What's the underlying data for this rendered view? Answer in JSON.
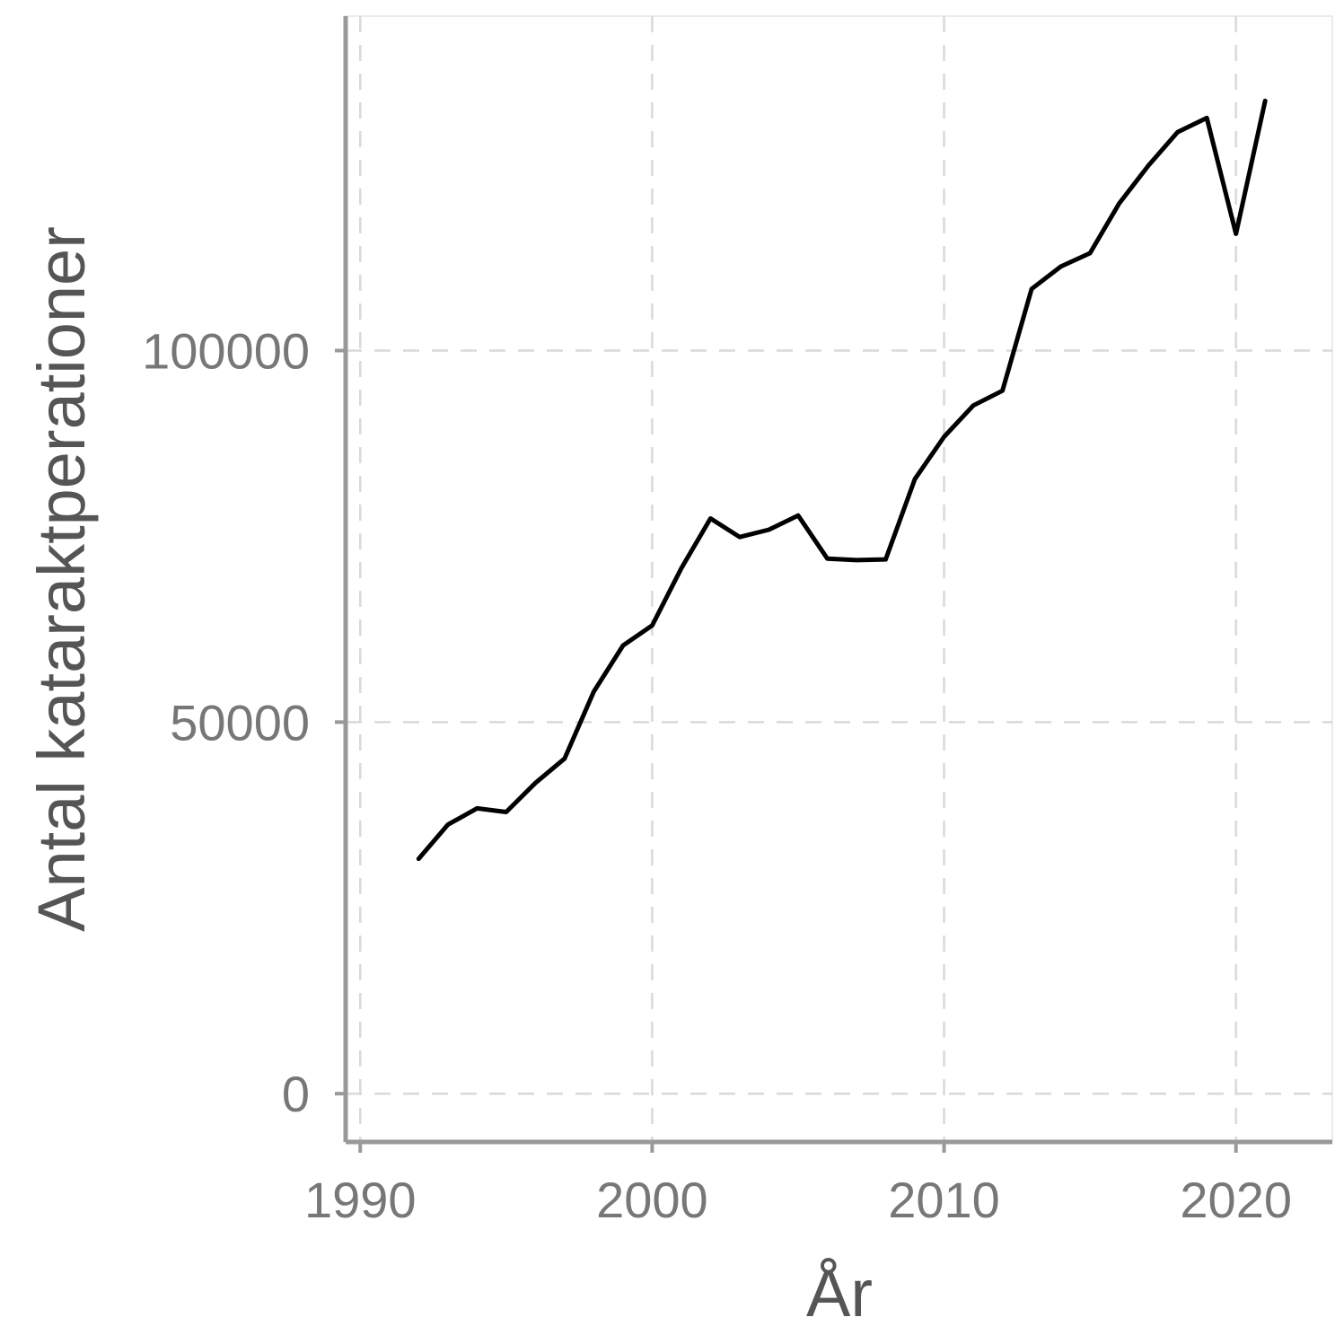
{
  "chart_data": {
    "type": "line",
    "title": "",
    "xlabel": "År",
    "ylabel": "Antal kataraktperationer",
    "xlim": [
      1989.5,
      2023.3
    ],
    "ylim": [
      -6500,
      145000
    ],
    "x_ticks": [
      1990,
      2000,
      2010,
      2020
    ],
    "y_ticks": [
      0,
      50000,
      100000
    ],
    "x_tick_labels": [
      "1990",
      "2000",
      "2010",
      "2020"
    ],
    "y_tick_labels": [
      "0",
      "50000",
      "100000"
    ],
    "grid": true,
    "legend": "none",
    "series": [
      {
        "color": "#000000",
        "x": [
          1992,
          1993,
          1994,
          1995,
          1996,
          1997,
          1998,
          1999,
          2000,
          2001,
          2002,
          2003,
          2004,
          2005,
          2006,
          2007,
          2008,
          2009,
          2010,
          2011,
          2012,
          2013,
          2014,
          2015,
          2016,
          2017,
          2018,
          2019,
          2020,
          2021
        ],
        "y": [
          31600,
          36200,
          38400,
          37900,
          41800,
          45100,
          54100,
          60300,
          63000,
          70700,
          77400,
          74900,
          75900,
          77800,
          72000,
          71800,
          71900,
          82700,
          88400,
          92600,
          94600,
          108300,
          111300,
          113100,
          119800,
          124900,
          129400,
          131300,
          115700,
          133600
        ]
      }
    ]
  }
}
